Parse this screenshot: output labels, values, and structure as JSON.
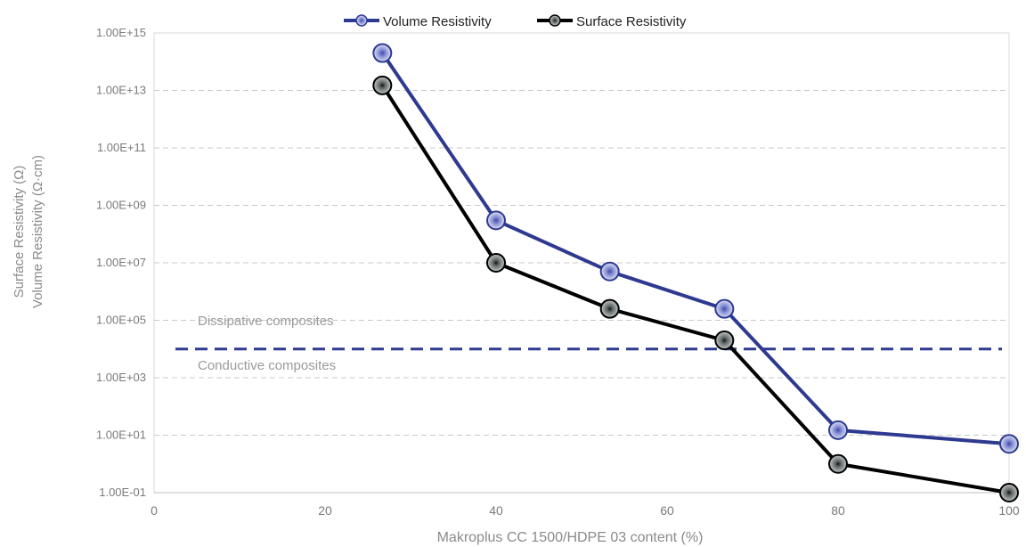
{
  "chart_data": {
    "type": "line",
    "xlabel": "Makroplus CC 1500/HDPE 03 content (%)",
    "ylabel_lines": [
      "Surface Resistivity (Ω)",
      "Volume Resistivity (Ω·cm)"
    ],
    "xlim": [
      0,
      100
    ],
    "xticks": [
      0,
      20,
      40,
      60,
      80,
      100
    ],
    "ylim": [
      0.1,
      1000000000000000.0
    ],
    "yscale": "log",
    "ytick_labels": [
      "1.00E-01",
      "1.00E+01",
      "1.00E+03",
      "1.00E+05",
      "1.00E+07",
      "1.00E+09",
      "1.00E+11",
      "1.00E+13",
      "1.00E+15"
    ],
    "ytick_values": [
      0.1,
      10.0,
      1000.0,
      100000.0,
      10000000.0,
      1000000000.0,
      100000000000.0,
      10000000000000.0,
      1000000000000000.0
    ],
    "grid": "horizontal dashed",
    "legend": "top-center",
    "series": [
      {
        "name": "Volume Resistivity",
        "color": "#2e3a8f",
        "x": [
          26.7,
          40,
          53.3,
          66.7,
          80,
          100
        ],
        "y": [
          200000000000000.0,
          300000000.0,
          5000000.0,
          250000.0,
          15,
          5
        ]
      },
      {
        "name": "Surface Resistivity",
        "color": "#000000",
        "x": [
          26.7,
          40,
          53.3,
          66.7,
          80,
          100
        ],
        "y": [
          15000000000000.0,
          10000000.0,
          250000.0,
          20000.0,
          1,
          0.1
        ]
      }
    ],
    "threshold": {
      "value": 10000.0,
      "color": "#2e3a8f",
      "label_above": "Dissipative composites",
      "label_below": "Conductive composites"
    }
  }
}
